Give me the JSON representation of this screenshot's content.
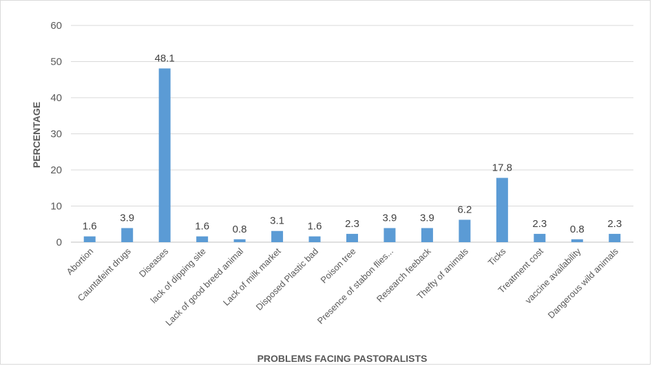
{
  "chart_data": {
    "type": "bar",
    "title": "",
    "xlabel": "PROBLEMS FACING PASTORALISTS",
    "ylabel": "PERCENTAGE",
    "ylim": [
      0,
      60
    ],
    "yticks": [
      0,
      10,
      20,
      30,
      40,
      50,
      60
    ],
    "grid": true,
    "legend": "none",
    "bar_color": "#5b9bd5",
    "categories": [
      "Abortion",
      "Cauntafeint drugs",
      "Diseases",
      "lack of dipping site",
      "Lack of good breed animal",
      "Lack of milk market",
      "Disposed Plastic bad",
      "Poison tree",
      "Presence of stabon flies...",
      "Research feeback",
      "Thefty of animals",
      "Ticks",
      "Treatment cost",
      "vaccine availability",
      "Dangerous wild animals"
    ],
    "values": [
      1.6,
      3.9,
      48.1,
      1.6,
      0.8,
      3.1,
      1.6,
      2.3,
      3.9,
      3.9,
      6.2,
      17.8,
      2.3,
      0.8,
      2.3
    ],
    "value_labels": [
      "1.6",
      "3.9",
      "48.1",
      "1.6",
      "0.8",
      "3.1",
      "1.6",
      "2.3",
      "3.9",
      "3.9",
      "6.2",
      "17.8",
      "2.3",
      "0.8",
      "2.3"
    ]
  }
}
